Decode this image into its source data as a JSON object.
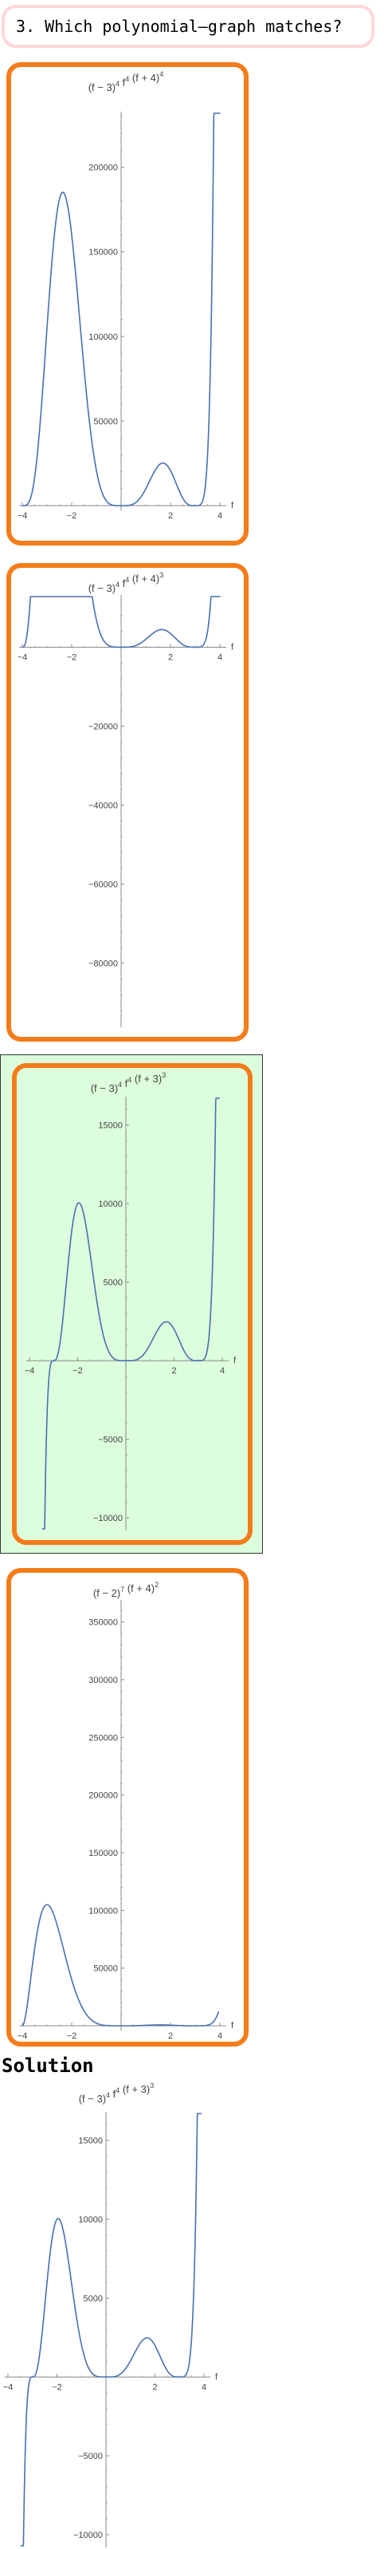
{
  "question": {
    "text": "3. Which polynomial–graph matches?"
  },
  "colors": {
    "card_border": "#f57c1a",
    "selected_bg": "#dcfedc",
    "curve": "#4a6fb0",
    "question_border": "#ffd6d9"
  },
  "options": [
    {
      "id": "A",
      "selected": false,
      "title_parts": [
        {
          "t": "(f − 3)"
        },
        {
          "t": "4",
          "sup": true
        },
        {
          "t": " f"
        },
        {
          "t": "4",
          "sup": true
        },
        {
          "t": " (f + 4)"
        },
        {
          "t": "4",
          "sup": true
        }
      ],
      "chart_data": {
        "type": "line",
        "xlabel": "f",
        "xlim": [
          -4,
          4
        ],
        "ylim": [
          0,
          230000
        ],
        "xticks": [
          -4,
          -2,
          2,
          4
        ],
        "xtick_labels": [
          "−4",
          "−2",
          "2",
          "4"
        ],
        "yticks": [
          50000,
          100000,
          150000,
          200000
        ],
        "ytick_labels": [
          "50000",
          "100000",
          "150000",
          "200000"
        ],
        "ymin_visible": 0,
        "ymax_visible": 221000,
        "series": [
          {
            "function": "(f-3)^4 f^4 (f+4)^4",
            "x_range": [
              -4,
              4.02
            ]
          }
        ]
      }
    },
    {
      "id": "B",
      "selected": false,
      "title_parts": [
        {
          "t": "(f − 3)"
        },
        {
          "t": "4",
          "sup": true
        },
        {
          "t": " f"
        },
        {
          "t": "4",
          "sup": true
        },
        {
          "t": " (f + 4)"
        },
        {
          "t": "3",
          "sup": true
        }
      ],
      "chart_data": {
        "type": "line",
        "xlabel": "f",
        "xlim": [
          -4,
          4
        ],
        "ylim": [
          -95000,
          12000
        ],
        "xticks": [
          -4,
          -2,
          2,
          4
        ],
        "xtick_labels": [
          "−4",
          "−2",
          "2",
          "4"
        ],
        "yticks": [
          -20000,
          -40000,
          -60000,
          -80000
        ],
        "ytick_labels": [
          "−20000",
          "−40000",
          "−60000",
          "−80000"
        ],
        "series": [
          {
            "function": "(f-3)^4 f^4 (f+4)^3",
            "x_range": [
              -4,
              4.02
            ]
          }
        ]
      }
    },
    {
      "id": "C",
      "selected": true,
      "title_parts": [
        {
          "t": "(f − 3)"
        },
        {
          "t": "4",
          "sup": true
        },
        {
          "t": " f"
        },
        {
          "t": "4",
          "sup": true
        },
        {
          "t": " (f + 3)"
        },
        {
          "t": "3",
          "sup": true
        }
      ],
      "chart_data": {
        "type": "line",
        "xlabel": "f",
        "xlim": [
          -4,
          4
        ],
        "ylim": [
          -10500,
          16500
        ],
        "xticks": [
          -4,
          -2,
          2,
          4
        ],
        "xtick_labels": [
          "−4",
          "−2",
          "2",
          "4"
        ],
        "yticks": [
          15000,
          10000,
          5000,
          -5000,
          -10000
        ],
        "ytick_labels": [
          "15000",
          "10000",
          "5000",
          "−5000",
          "−10000"
        ],
        "series": [
          {
            "function": "(f-3)^4 f^4 (f+3)^3",
            "x_range": [
              -3.48,
              3.9
            ]
          }
        ]
      }
    },
    {
      "id": "D",
      "selected": false,
      "title_parts": [
        {
          "t": "(f − 2)"
        },
        {
          "t": "7",
          "sup": true
        },
        {
          "t": " (f + 4)"
        },
        {
          "t": "2",
          "sup": true
        }
      ],
      "chart_data": {
        "type": "line",
        "xlabel": "f",
        "xlim": [
          -4,
          4
        ],
        "ylim": [
          0,
          365000
        ],
        "xticks": [
          -4,
          -2,
          2,
          4
        ],
        "xtick_labels": [
          "−4",
          "−2",
          "2",
          "4"
        ],
        "yticks": [
          50000,
          100000,
          150000,
          200000,
          250000,
          300000,
          350000
        ],
        "ytick_labels": [
          "50000",
          "100000",
          "150000",
          "200000",
          "250000",
          "300000",
          "350000"
        ],
        "series": [
          {
            "function": "(f-3)^4 f^4 (f+4)^2",
            "x_range": [
              -4,
              3.95
            ]
          }
        ]
      }
    }
  ],
  "solution": {
    "title": "Solution",
    "title_parts": [
      {
        "t": "(f − 3)"
      },
      {
        "t": "4",
        "sup": true
      },
      {
        "t": " f"
      },
      {
        "t": "4",
        "sup": true
      },
      {
        "t": " (f + 3)"
      },
      {
        "t": "3",
        "sup": true
      }
    ],
    "chart_data": {
      "type": "line",
      "xlabel": "f",
      "xlim": [
        -4,
        4
      ],
      "ylim": [
        -10500,
        16500
      ],
      "xticks": [
        -4,
        -2,
        2,
        4
      ],
      "xtick_labels": [
        "−4",
        "−2",
        "2",
        "4"
      ],
      "yticks": [
        15000,
        10000,
        5000,
        -5000,
        -10000
      ],
      "ytick_labels": [
        "15000",
        "10000",
        "5000",
        "−5000",
        "−10000"
      ],
      "series": [
        {
          "function": "(f-3)^4 f^4 (f+3)^3",
          "x_range": [
            -3.48,
            3.9
          ]
        }
      ]
    }
  }
}
